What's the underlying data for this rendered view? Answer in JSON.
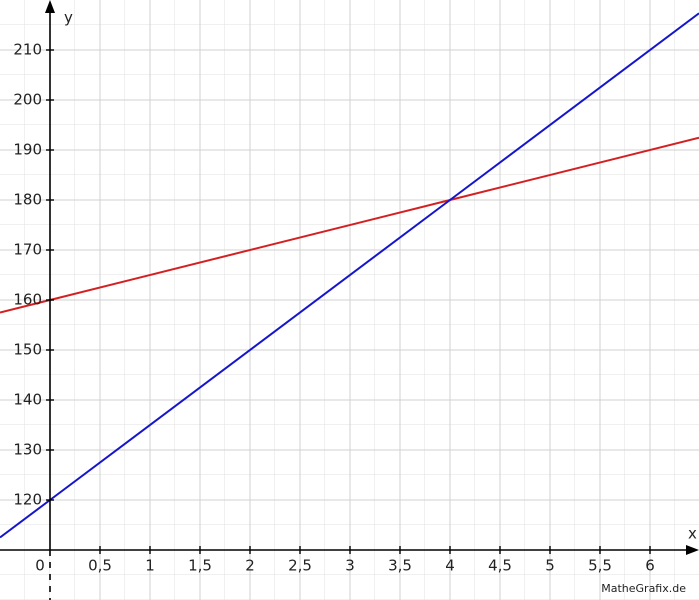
{
  "chart_data": {
    "type": "line",
    "x_label": "x",
    "y_label": "y",
    "xlim": [
      -0.5,
      6.49
    ],
    "ylim": [
      100,
      220
    ],
    "xticks": [
      0,
      {
        "value": 0.5,
        "label": "0,5"
      },
      1,
      {
        "value": 1.5,
        "label": "1,5"
      },
      2,
      {
        "value": 2.5,
        "label": "2,5"
      },
      3,
      {
        "value": 3.5,
        "label": "3,5"
      },
      4,
      {
        "value": 4.5,
        "label": "4,5"
      },
      5,
      {
        "value": 5.5,
        "label": "5,5"
      },
      6
    ],
    "yticks": [
      120,
      130,
      140,
      150,
      160,
      170,
      180,
      190,
      200,
      210
    ],
    "x": [
      -0.5,
      0,
      4,
      6.49
    ],
    "series": [
      {
        "color": "#d42020",
        "values": [
          157.5,
          160,
          180,
          192.45
        ]
      },
      {
        "color": "#1515cc",
        "values": [
          112.5,
          120,
          180,
          217.35
        ]
      }
    ],
    "grid": true,
    "credit": "MatheGrafix.de"
  }
}
